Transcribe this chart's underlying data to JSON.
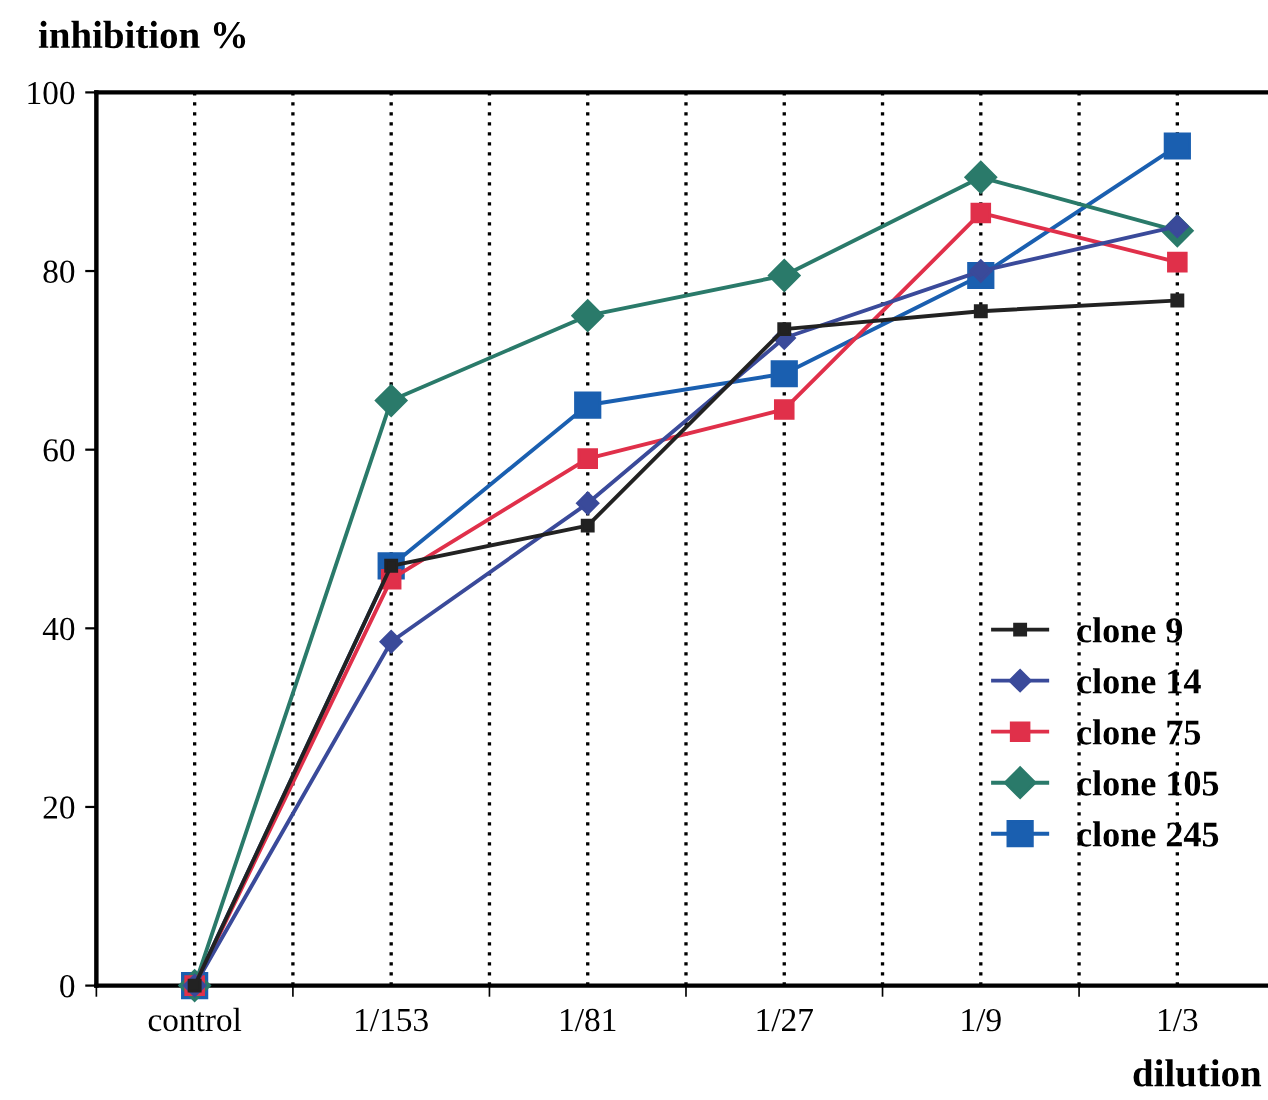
{
  "chart_data": {
    "type": "line",
    "ylabel": "inhibition %",
    "xlabel": "dilution",
    "categories": [
      "control",
      "1/153",
      "1/81",
      "1/27",
      "1/9",
      "1/3"
    ],
    "ylim": [
      0,
      100
    ],
    "yticks": [
      0,
      20,
      40,
      60,
      80,
      100
    ],
    "grid": "x",
    "legend": "right",
    "line_style": "solid",
    "series": [
      {
        "name": "clone 9",
        "color": "#222222",
        "marker": "square",
        "values": [
          0,
          47,
          51.5,
          73.5,
          75.5,
          76.7
        ]
      },
      {
        "name": "clone 14",
        "color": "#3a4a9a",
        "marker": "diamond",
        "values": [
          0,
          38.5,
          54,
          72.5,
          80,
          85
        ]
      },
      {
        "name": "clone 75",
        "color": "#e0304a",
        "marker": "square",
        "values": [
          0,
          45.5,
          59,
          64.5,
          86.5,
          81
        ]
      },
      {
        "name": "clone 105",
        "color": "#2a7a6a",
        "marker": "diamond",
        "values": [
          0,
          65.5,
          75,
          79.5,
          90.5,
          84.5
        ]
      },
      {
        "name": "clone 245",
        "color": "#1a5fb0",
        "marker": "square",
        "values": [
          0,
          47,
          65,
          68.5,
          79.5,
          94
        ]
      }
    ]
  }
}
